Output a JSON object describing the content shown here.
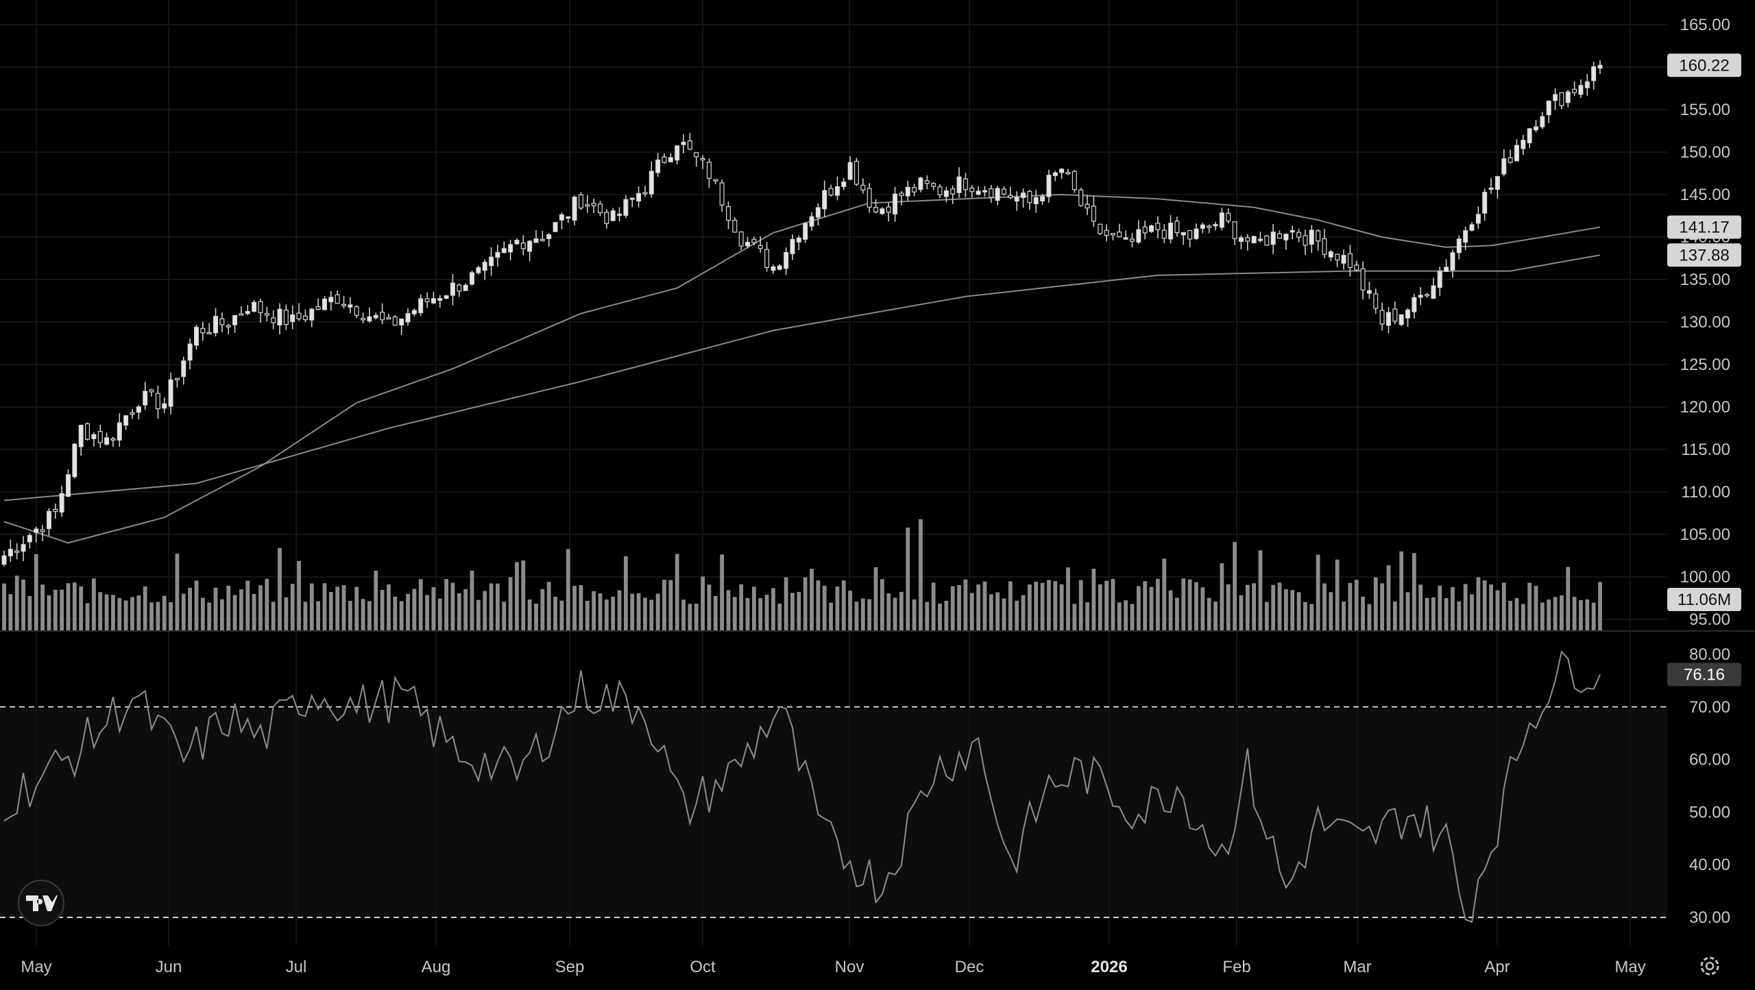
{
  "chart_data": [
    {
      "type": "candlestick",
      "title": "",
      "ylim": [
        92,
        168
      ],
      "y_ticks": [
        "165.00",
        "160.00",
        "155.00",
        "150.00",
        "145.00",
        "140.00",
        "135.00",
        "130.00",
        "125.00",
        "120.00",
        "115.00",
        "110.00",
        "105.00",
        "100.00",
        "95.00"
      ],
      "x_months": [
        "May",
        "Jun",
        "Jul",
        "Aug",
        "Sep",
        "Oct",
        "Nov",
        "Dec",
        "2026",
        "Feb",
        "Mar",
        "Apr",
        "May"
      ],
      "price_anchors": {
        "dates_index": [
          0,
          8,
          12,
          16,
          21,
          25,
          30,
          35,
          38,
          45,
          52,
          60,
          66,
          75,
          80,
          85,
          90,
          95,
          100,
          105,
          110,
          115,
          120,
          126,
          132,
          136,
          140,
          143,
          146,
          150,
          155,
          160,
          165,
          170,
          175,
          180,
          185,
          190,
          195,
          200,
          205,
          210,
          215,
          220,
          225,
          229,
          233,
          236,
          240,
          245,
          249
        ],
        "close": [
          102.5,
          107.5,
          117.5,
          116.0,
          121.0,
          120.5,
          129.0,
          130.0,
          132.0,
          130.0,
          133.0,
          129.5,
          132.5,
          136.0,
          139.5,
          140.5,
          144.5,
          142.0,
          146.0,
          151.5,
          147.5,
          140.0,
          136.5,
          143.0,
          148.5,
          143.0,
          145.0,
          146.0,
          145.5,
          146.5,
          145.5,
          144.0,
          148.0,
          141.0,
          139.0,
          141.0,
          140.0,
          142.0,
          139.0,
          141.0,
          139.5,
          137.0,
          130.0,
          132.0,
          137.0,
          142.5,
          147.0,
          151.0,
          155.0,
          157.5,
          160.22
        ]
      },
      "series": [
        {
          "name": "",
          "kind": "moving-average-50",
          "last": 141.17
        },
        {
          "name": "",
          "kind": "moving-average-200",
          "last": 137.88
        }
      ],
      "last_price_label": "160.22",
      "ma_labels": [
        "141.17",
        "137.88"
      ],
      "volume": {
        "last_label": "11.06M"
      },
      "colors": {
        "up": "#d9d9d9",
        "down": "#d9d9d9",
        "ma": "#8a8a8a",
        "grid": "#161616",
        "volume": "#8c8c8c"
      }
    },
    {
      "type": "line",
      "title": "",
      "ylim": [
        27,
        82
      ],
      "y_ticks": [
        "80.00",
        "70.00",
        "60.00",
        "50.00",
        "40.00",
        "30.00"
      ],
      "bands": [
        70,
        30
      ],
      "last_label": "76.16",
      "anchors": {
        "index": [
          0,
          10,
          20,
          28,
          35,
          40,
          48,
          55,
          62,
          70,
          80,
          90,
          100,
          106,
          114,
          121,
          128,
          137,
          145,
          152,
          157,
          163,
          168,
          177,
          183,
          190,
          194,
          200,
          205,
          212,
          219,
          225,
          228,
          233,
          237,
          240,
          244,
          249
        ],
        "value": [
          52,
          60,
          72,
          60,
          68,
          64,
          73,
          70,
          72,
          62,
          57,
          73,
          70,
          50,
          58,
          70,
          45,
          36,
          58,
          63,
          40,
          55,
          58,
          50,
          55,
          42,
          58,
          35,
          48,
          44,
          50,
          45,
          30,
          48,
          65,
          72,
          78,
          76.16
        ]
      }
    }
  ],
  "logo": {
    "name": "tradingview-logo"
  }
}
